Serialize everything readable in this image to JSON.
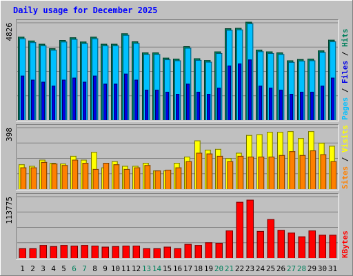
{
  "chart_data": [
    {
      "type": "bar",
      "title": "Daily usage for December 2025",
      "panel": "hits-files-pages",
      "ymax_label": "4826",
      "ylim": [
        0,
        4826
      ],
      "y_axis_legend": [
        "Pages",
        "Files",
        "Hits"
      ],
      "categories": [
        "1",
        "2",
        "3",
        "4",
        "5",
        "6",
        "7",
        "8",
        "9",
        "10",
        "11",
        "12",
        "13",
        "14",
        "15",
        "16",
        "17",
        "18",
        "19",
        "20",
        "21",
        "22",
        "23",
        "24",
        "25",
        "26",
        "27",
        "28",
        "29",
        "30",
        "31"
      ],
      "weekend_days": [
        "6",
        "7",
        "13",
        "14",
        "20",
        "21",
        "27",
        "28"
      ],
      "series": [
        {
          "name": "Hits",
          "values": [
            4130,
            3940,
            3780,
            3560,
            3970,
            4100,
            3890,
            4130,
            3780,
            3780,
            4300,
            3900,
            3350,
            3350,
            3090,
            3040,
            3660,
            3060,
            2970,
            3400,
            4550,
            4570,
            4870,
            3490,
            3400,
            3350,
            2960,
            3020,
            3040,
            3450,
            3980
          ]
        },
        {
          "name": "Files",
          "values": [
            4050,
            3860,
            3700,
            3480,
            3890,
            4020,
            3810,
            4050,
            3700,
            3700,
            4220,
            3820,
            3270,
            3270,
            3010,
            2960,
            3580,
            2980,
            2890,
            3320,
            4470,
            4490,
            4790,
            3410,
            3320,
            3270,
            2880,
            2940,
            2960,
            3370,
            3900
          ]
        },
        {
          "name": "Pages",
          "values": [
            2200,
            2000,
            1900,
            1700,
            2000,
            2100,
            1900,
            2200,
            1800,
            1800,
            2300,
            2000,
            1500,
            1500,
            1400,
            1300,
            1800,
            1400,
            1300,
            1600,
            2700,
            2800,
            3000,
            1700,
            1600,
            1500,
            1300,
            1400,
            1400,
            1700,
            2100
          ]
        }
      ]
    },
    {
      "type": "bar",
      "panel": "visits-sites",
      "ymax_label": "398",
      "ylim": [
        0,
        398
      ],
      "y_axis_legend": [
        "Sites",
        "Visits"
      ],
      "categories": [
        "1",
        "2",
        "3",
        "4",
        "5",
        "6",
        "7",
        "8",
        "9",
        "10",
        "11",
        "12",
        "13",
        "14",
        "15",
        "16",
        "17",
        "18",
        "19",
        "20",
        "21",
        "22",
        "23",
        "24",
        "25",
        "26",
        "27",
        "28",
        "29",
        "30",
        "31"
      ],
      "series": [
        {
          "name": "Visits",
          "values": [
            160,
            150,
            190,
            170,
            165,
            215,
            190,
            240,
            140,
            180,
            150,
            150,
            170,
            120,
            120,
            170,
            210,
            315,
            255,
            260,
            200,
            235,
            350,
            355,
            370,
            370,
            375,
            330,
            375,
            300,
            280
          ]
        },
        {
          "name": "Sites",
          "values": [
            140,
            140,
            175,
            165,
            155,
            190,
            170,
            130,
            170,
            160,
            130,
            140,
            155,
            120,
            125,
            140,
            180,
            235,
            230,
            215,
            180,
            215,
            210,
            210,
            210,
            220,
            245,
            220,
            250,
            225,
            180
          ]
        }
      ]
    },
    {
      "type": "bar",
      "panel": "kbytes",
      "ymax_label": "113775",
      "ylim": [
        0,
        113775
      ],
      "y_axis_legend": [
        "KBytes"
      ],
      "categories": [
        "1",
        "2",
        "3",
        "4",
        "5",
        "6",
        "7",
        "8",
        "9",
        "10",
        "11",
        "12",
        "13",
        "14",
        "15",
        "16",
        "17",
        "18",
        "19",
        "20",
        "21",
        "22",
        "23",
        "24",
        "25",
        "26",
        "27",
        "28",
        "29",
        "30",
        "31"
      ],
      "series": [
        {
          "name": "KBytes",
          "values": [
            18000,
            18000,
            24000,
            22000,
            24000,
            23000,
            24000,
            23000,
            21000,
            22000,
            23000,
            23000,
            18000,
            18000,
            21000,
            18000,
            26000,
            24000,
            29000,
            28000,
            51000,
            104000,
            108000,
            50000,
            72000,
            52000,
            47000,
            40000,
            51000,
            43000,
            43000
          ]
        }
      ]
    }
  ],
  "colors": {
    "background": "#c0c0c0",
    "plot_bg": "#c0c0c0",
    "title": "#0000ff",
    "hits": "#00805c",
    "files": "#0000e6",
    "pages": "#00c0ff",
    "visits": "#ffff00",
    "sites": "#ff8000",
    "kbytes": "#ff0000",
    "weekend_label": "#00805c",
    "weekday_label": "#000000"
  }
}
